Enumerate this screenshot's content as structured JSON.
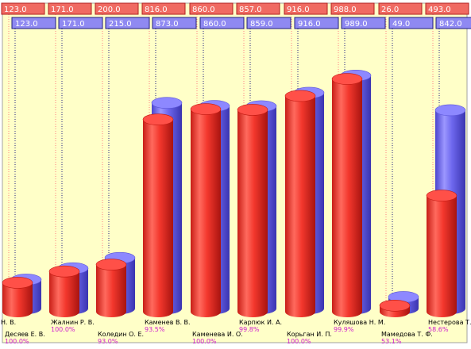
{
  "chart_data": {
    "type": "bar",
    "categories": [
      "Десяев Е. В.",
      "Жалнин Р. В.",
      "Коледин О. Е.",
      "Каменев В. В.",
      "Каменева И. О.",
      "Карпюк И. А.",
      "Корьган И. П.",
      "Куляшова Н. М.",
      "Мамедова Т. Ф.",
      "Нестерова Т."
    ],
    "shown_labels": [
      "Н. В.",
      "Десяев Е. В.",
      "Жалнин Р. В.",
      "Коледин О. Е.",
      "Каменев В. В.",
      "Каменева И. О.",
      "Карпюк И. А.",
      "Корьган И. П.",
      "Куляшова Н. М.",
      "Мамедова Т. Ф.",
      "Нестерова Т."
    ],
    "percent_labels": [
      "100.0%",
      "100.0%",
      "93.0%",
      "93.5%",
      "100.0%",
      "99.8%",
      "100.0%",
      "99.9%",
      "53.1%",
      "58.6%"
    ],
    "series": [
      {
        "color": "#e83c34",
        "values": [
          123.0,
          171.0,
          200.0,
          816.0,
          860.0,
          857.0,
          916.0,
          988.0,
          26.0,
          493.0
        ],
        "labels": [
          "123.0",
          "171.0",
          "200.0",
          "816.0",
          "860.0",
          "857.0",
          "916.0",
          "988.0",
          "26.0",
          "493.0"
        ]
      },
      {
        "color": "#6e68ee",
        "values": [
          123.0,
          171.0,
          215.0,
          873.0,
          860.0,
          859.0,
          916.0,
          989.0,
          49.0,
          842.0
        ],
        "labels": [
          "123.0",
          "171.0",
          "215.0",
          "873.0",
          "860.0",
          "859.0",
          "916.0",
          "989.0",
          "49.0",
          "842.0"
        ]
      }
    ],
    "ylim": [
      0,
      1000
    ],
    "grid": false,
    "legend": "none",
    "background": "#ffffc8",
    "percent_color": "#d020d0",
    "red_label_bg": "#f06a62",
    "blue_label_bg": "#8f89f2"
  }
}
